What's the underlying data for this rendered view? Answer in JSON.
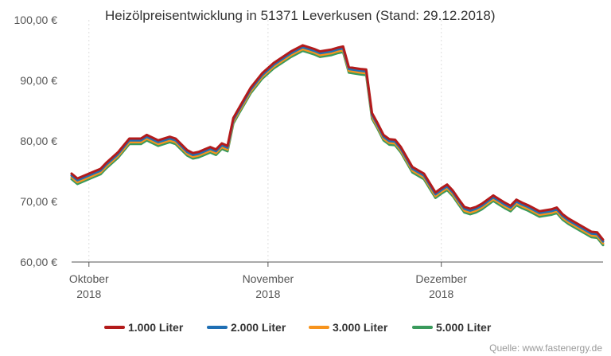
{
  "chart_data": {
    "type": "line",
    "title": "Heizölpreisentwicklung in 51371 Leverkusen (Stand: 29.12.2018)",
    "xlabel": "",
    "ylabel": "",
    "x_range": [
      "2018-09-28",
      "2018-12-29"
    ],
    "ylim": [
      60,
      100
    ],
    "yticks": [
      {
        "value": 60,
        "label": "60,00 €"
      },
      {
        "value": 70,
        "label": "70,00 €"
      },
      {
        "value": 80,
        "label": "80,00 €"
      },
      {
        "value": 90,
        "label": "90,00 €"
      },
      {
        "value": 100,
        "label": "100,00 €"
      }
    ],
    "xticks": [
      {
        "date": "2018-10-01",
        "line1": "Oktober",
        "line2": "2018"
      },
      {
        "date": "2018-11-01",
        "line1": "November",
        "line2": "2018"
      },
      {
        "date": "2018-12-01",
        "line1": "Dezember",
        "line2": "2018"
      }
    ],
    "grid": "vertical",
    "legend_position": "bottom",
    "dates": [
      "2018-09-28",
      "2018-09-29",
      "2018-10-02",
      "2018-10-03",
      "2018-10-04",
      "2018-10-06",
      "2018-10-08",
      "2018-10-10",
      "2018-10-11",
      "2018-10-13",
      "2018-10-15",
      "2018-10-16",
      "2018-10-18",
      "2018-10-19",
      "2018-10-20",
      "2018-10-22",
      "2018-10-23",
      "2018-10-24",
      "2018-10-25",
      "2018-10-26",
      "2018-10-27",
      "2018-10-29",
      "2018-10-31",
      "2018-11-02",
      "2018-11-05",
      "2018-11-07",
      "2018-11-08",
      "2018-11-09",
      "2018-11-10",
      "2018-11-12",
      "2018-11-13",
      "2018-11-14",
      "2018-11-15",
      "2018-11-17",
      "2018-11-18",
      "2018-11-19",
      "2018-11-20",
      "2018-11-21",
      "2018-11-22",
      "2018-11-23",
      "2018-11-24",
      "2018-11-26",
      "2018-11-28",
      "2018-11-30",
      "2018-12-01",
      "2018-12-02",
      "2018-12-03",
      "2018-12-04",
      "2018-12-05",
      "2018-12-06",
      "2018-12-07",
      "2018-12-08",
      "2018-12-10",
      "2018-12-11",
      "2018-12-12",
      "2018-12-13",
      "2018-12-14",
      "2018-12-15",
      "2018-12-16",
      "2018-12-18",
      "2018-12-20",
      "2018-12-21",
      "2018-12-22",
      "2018-12-23",
      "2018-12-27",
      "2018-12-28",
      "2018-12-29"
    ],
    "series": [
      {
        "name": "1.000 Liter",
        "color": "#b31b1b",
        "values": [
          74.6,
          73.8,
          75.0,
          75.4,
          76.4,
          78.1,
          80.4,
          80.4,
          81.0,
          80.1,
          80.7,
          80.4,
          78.5,
          78.0,
          78.2,
          79.0,
          78.6,
          79.6,
          79.2,
          83.8,
          85.5,
          88.8,
          91.2,
          92.9,
          94.8,
          95.8,
          95.5,
          95.2,
          94.8,
          95.1,
          95.4,
          95.6,
          92.2,
          91.9,
          91.8,
          84.6,
          82.9,
          81.0,
          80.3,
          80.2,
          79.0,
          75.7,
          74.6,
          71.5,
          72.2,
          72.8,
          71.8,
          70.4,
          69.1,
          68.8,
          69.1,
          69.6,
          71.0,
          70.4,
          69.8,
          69.3,
          70.3,
          69.8,
          69.4,
          68.4,
          68.7,
          69.0,
          67.9,
          67.2,
          65.0,
          64.9,
          63.7
        ]
      },
      {
        "name": "2.000 Liter",
        "color": "#1f6fb4",
        "values": [
          74.3,
          73.5,
          74.7,
          75.1,
          76.1,
          77.8,
          80.1,
          80.1,
          80.7,
          79.8,
          80.4,
          80.1,
          78.2,
          77.7,
          77.9,
          78.7,
          78.3,
          79.3,
          78.9,
          83.5,
          85.2,
          88.5,
          90.9,
          92.6,
          94.5,
          95.5,
          95.2,
          94.9,
          94.5,
          94.8,
          95.1,
          95.3,
          91.9,
          91.6,
          91.5,
          84.3,
          82.6,
          80.7,
          80.0,
          79.9,
          78.7,
          75.4,
          74.3,
          71.2,
          71.9,
          72.5,
          71.5,
          70.1,
          68.8,
          68.5,
          68.8,
          69.3,
          70.7,
          70.1,
          69.5,
          69.0,
          70.0,
          69.5,
          69.1,
          68.1,
          68.4,
          68.7,
          67.6,
          66.9,
          64.7,
          64.6,
          63.4
        ]
      },
      {
        "name": "3.000 Liter",
        "color": "#f7941d",
        "values": [
          74.0,
          73.2,
          74.4,
          74.8,
          75.8,
          77.5,
          79.8,
          79.8,
          80.4,
          79.5,
          80.1,
          79.8,
          77.9,
          77.4,
          77.6,
          78.4,
          78.0,
          79.0,
          78.6,
          83.2,
          84.9,
          88.2,
          90.6,
          92.3,
          94.2,
          95.2,
          94.9,
          94.6,
          94.2,
          94.5,
          94.8,
          95.0,
          91.6,
          91.3,
          91.2,
          84.0,
          82.3,
          80.4,
          79.7,
          79.6,
          78.4,
          75.1,
          74.0,
          70.9,
          71.6,
          72.2,
          71.2,
          69.8,
          68.5,
          68.2,
          68.5,
          69.0,
          70.4,
          69.8,
          69.2,
          68.7,
          69.7,
          69.2,
          68.8,
          67.8,
          68.1,
          68.4,
          67.3,
          66.6,
          64.4,
          64.3,
          63.1
        ]
      },
      {
        "name": "5.000 Liter",
        "color": "#3a9a5c",
        "values": [
          73.7,
          72.9,
          74.1,
          74.5,
          75.5,
          77.2,
          79.5,
          79.5,
          80.1,
          79.2,
          79.8,
          79.5,
          77.6,
          77.1,
          77.3,
          78.1,
          77.7,
          78.7,
          78.3,
          82.9,
          84.6,
          87.9,
          90.3,
          92.0,
          93.9,
          94.9,
          94.6,
          94.3,
          93.9,
          94.2,
          94.5,
          94.7,
          91.3,
          91.0,
          90.9,
          83.7,
          82.0,
          80.1,
          79.4,
          79.3,
          78.1,
          74.8,
          73.7,
          70.6,
          71.3,
          71.9,
          70.9,
          69.5,
          68.2,
          67.9,
          68.2,
          68.7,
          70.1,
          69.5,
          68.9,
          68.4,
          69.4,
          68.9,
          68.5,
          67.5,
          67.8,
          68.1,
          67.0,
          66.3,
          64.1,
          64.0,
          62.8
        ]
      }
    ],
    "source": "Quelle: www.fastenergy.de"
  }
}
